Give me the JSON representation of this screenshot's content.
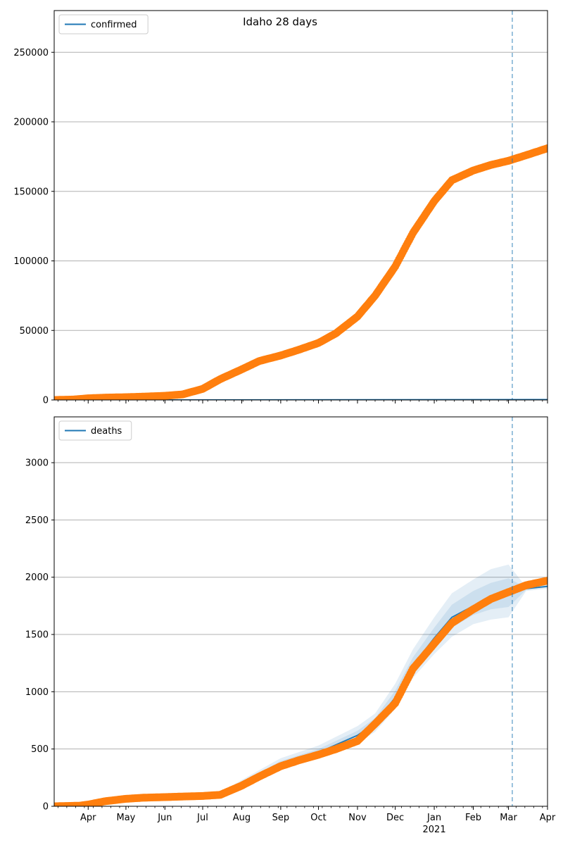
{
  "title": "Idaho 28 days",
  "colors": {
    "observed": "#ff7f0e",
    "model": "#1f77b4",
    "grid": "#b0b0b0",
    "band": "#1f77b4"
  },
  "x_axis": {
    "ticks": [
      {
        "date": "2020-04-01",
        "label": "Apr"
      },
      {
        "date": "2020-05-01",
        "label": "May"
      },
      {
        "date": "2020-06-01",
        "label": "Jun"
      },
      {
        "date": "2020-07-01",
        "label": "Jul"
      },
      {
        "date": "2020-08-01",
        "label": "Aug"
      },
      {
        "date": "2020-09-01",
        "label": "Sep"
      },
      {
        "date": "2020-10-01",
        "label": "Oct"
      },
      {
        "date": "2020-11-01",
        "label": "Nov"
      },
      {
        "date": "2020-12-01",
        "label": "Dec"
      },
      {
        "date": "2021-01-01",
        "label": "Jan"
      },
      {
        "date": "2021-02-01",
        "label": "Feb"
      },
      {
        "date": "2021-03-01",
        "label": "Mar"
      },
      {
        "date": "2021-04-01",
        "label": "Apr"
      }
    ],
    "year_label": "2021"
  },
  "chart_data": [
    {
      "type": "line",
      "legend": "confirmed",
      "legend_placement": "top-left",
      "grid": "horizontal",
      "xlim": [
        "2020-03-05",
        "2021-04-01"
      ],
      "ylim": [
        0,
        280000
      ],
      "yticks": [
        0,
        50000,
        100000,
        150000,
        200000,
        250000
      ],
      "forecast_start": "2021-03-04",
      "series": [
        {
          "name": "confirmed",
          "kind": "model",
          "x": [
            "2020-03-05",
            "2021-04-01"
          ],
          "y": [
            0,
            300
          ]
        },
        {
          "kind": "observed",
          "x": [
            "2020-03-05",
            "2020-03-20",
            "2020-04-01",
            "2020-04-15",
            "2020-05-01",
            "2020-05-15",
            "2020-06-01",
            "2020-06-15",
            "2020-07-01",
            "2020-07-15",
            "2020-08-01",
            "2020-08-15",
            "2020-09-01",
            "2020-09-15",
            "2020-10-01",
            "2020-10-15",
            "2020-11-01",
            "2020-11-15",
            "2020-12-01",
            "2020-12-15",
            "2021-01-01",
            "2021-01-15",
            "2021-02-01",
            "2021-02-15",
            "2021-03-01",
            "2021-03-15",
            "2021-04-01"
          ],
          "y": [
            0,
            300,
            1200,
            1700,
            2000,
            2400,
            3000,
            4000,
            8000,
            15000,
            22000,
            28000,
            32000,
            36000,
            41000,
            48000,
            60000,
            75000,
            96000,
            120000,
            143000,
            158000,
            165000,
            169000,
            172000,
            176000,
            181000
          ]
        }
      ]
    },
    {
      "type": "line",
      "legend": "deaths",
      "legend_placement": "top-left",
      "grid": "horizontal",
      "xlim": [
        "2020-03-05",
        "2021-04-01"
      ],
      "ylim": [
        0,
        3400
      ],
      "yticks": [
        0,
        500,
        1000,
        1500,
        2000,
        2500,
        3000
      ],
      "forecast_start": "2021-03-04",
      "series": [
        {
          "name": "deaths",
          "kind": "model",
          "x": [
            "2020-03-05",
            "2020-04-01",
            "2020-05-01",
            "2020-06-01",
            "2020-07-01",
            "2020-07-15",
            "2020-08-01",
            "2020-09-01",
            "2020-10-01",
            "2020-11-01",
            "2020-11-15",
            "2020-12-01",
            "2020-12-15",
            "2021-01-01",
            "2021-01-15",
            "2021-02-01",
            "2021-02-15",
            "2021-03-01",
            "2021-03-15",
            "2021-04-01"
          ],
          "y": [
            0,
            10,
            60,
            85,
            95,
            105,
            190,
            370,
            470,
            620,
            730,
            950,
            1230,
            1470,
            1650,
            1750,
            1820,
            1870,
            1900,
            1920
          ],
          "bands": [
            {
              "lower": [
                0,
                5,
                50,
                75,
                85,
                90,
                160,
                330,
                420,
                550,
                650,
                850,
                1120,
                1330,
                1480,
                1590,
                1630,
                1650,
                1880,
                1900
              ],
              "upper": [
                0,
                15,
                70,
                95,
                105,
                120,
                230,
                420,
                530,
                700,
                810,
                1070,
                1370,
                1650,
                1860,
                1980,
                2070,
                2110,
                1915,
                1935
              ]
            },
            {
              "lower": [
                0,
                7,
                55,
                80,
                88,
                95,
                175,
                350,
                445,
                580,
                690,
                900,
                1180,
                1400,
                1560,
                1670,
                1720,
                1740,
                1890,
                1910
              ],
              "upper": [
                0,
                13,
                65,
                90,
                102,
                115,
                210,
                395,
                500,
                660,
                770,
                1010,
                1300,
                1560,
                1760,
                1880,
                1950,
                1990,
                1910,
                1930
              ]
            }
          ]
        },
        {
          "kind": "observed",
          "x": [
            "2020-03-05",
            "2020-03-25",
            "2020-04-01",
            "2020-04-15",
            "2020-05-01",
            "2020-05-15",
            "2020-06-01",
            "2020-06-15",
            "2020-07-01",
            "2020-07-15",
            "2020-08-01",
            "2020-08-15",
            "2020-09-01",
            "2020-09-15",
            "2020-10-01",
            "2020-10-15",
            "2020-11-01",
            "2020-11-15",
            "2020-12-01",
            "2020-12-15",
            "2021-01-01",
            "2021-01-15",
            "2021-02-01",
            "2021-02-15",
            "2021-03-01",
            "2021-03-15",
            "2021-04-01"
          ],
          "y": [
            0,
            5,
            15,
            45,
            65,
            75,
            80,
            85,
            90,
            100,
            180,
            260,
            350,
            400,
            450,
            500,
            570,
            720,
            900,
            1200,
            1420,
            1600,
            1720,
            1810,
            1870,
            1930,
            1970
          ]
        }
      ]
    }
  ]
}
